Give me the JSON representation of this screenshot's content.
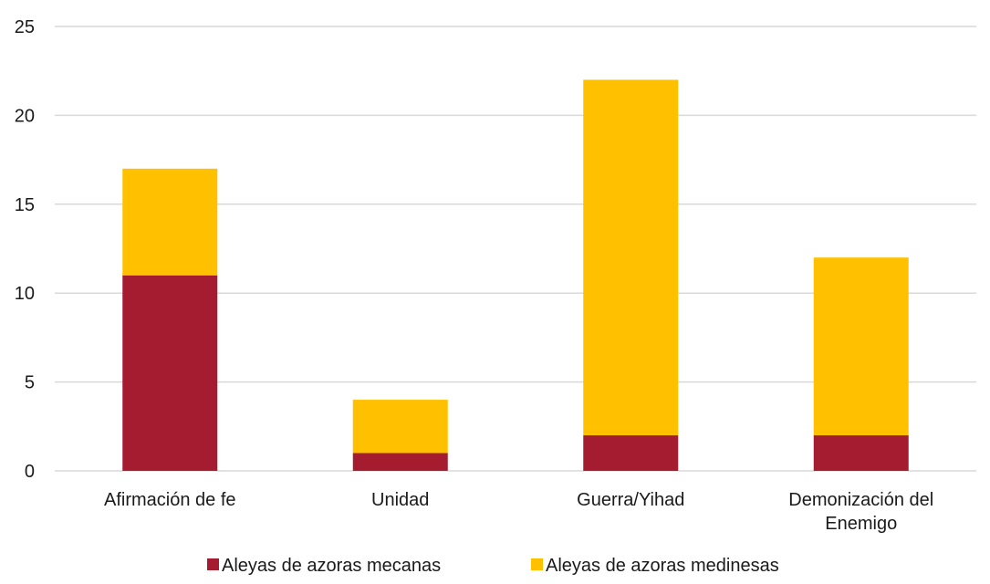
{
  "chart_data": {
    "type": "bar",
    "stacked": true,
    "title": "",
    "xlabel": "",
    "ylabel": "",
    "ylim": [
      0,
      25
    ],
    "yticks": [
      0,
      5,
      10,
      15,
      20,
      25
    ],
    "grid": true,
    "legend_position": "bottom",
    "categories": [
      [
        "Afirmación de fe"
      ],
      [
        "Unidad"
      ],
      [
        "Guerra/Yihad"
      ],
      [
        "Demonización del",
        "Enemigo"
      ]
    ],
    "series": [
      {
        "name": "Aleyas de azoras mecanas",
        "color": "#A51C30",
        "values": [
          11,
          1,
          2,
          2
        ]
      },
      {
        "name": "Aleyas de azoras medinesas",
        "color": "#FFC000",
        "values": [
          6,
          3,
          20,
          10
        ]
      }
    ]
  }
}
